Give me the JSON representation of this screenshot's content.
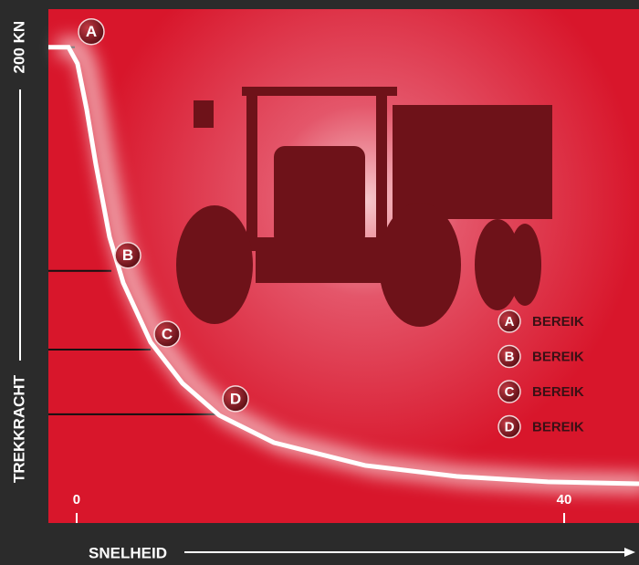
{
  "chart_data": {
    "type": "line",
    "y_label": "TREKKRACHT",
    "x_label": "SNELHEID",
    "xlim": [
      -2.32,
      46.14
    ],
    "ylim": [
      0,
      216
    ],
    "xticks": [
      0,
      40
    ],
    "yticks": [
      {
        "value": 200,
        "label": "200 KN"
      }
    ],
    "curve_color": "#ffffff",
    "x": [
      -2.32,
      -0.67,
      0.07,
      0.82,
      1.57,
      2.7,
      3.82,
      6.07,
      8.69,
      11.69,
      16.18,
      23.67,
      31.16,
      38.65,
      46.14
    ],
    "values": [
      200,
      200,
      193.1,
      173.9,
      150.9,
      120.2,
      101.0,
      76.0,
      58.7,
      45.3,
      33.8,
      24.2,
      19.6,
      17.3,
      16.5
    ],
    "points": [
      {
        "label": "A",
        "x": -0.15,
        "y": 200,
        "legend": "BEREIK"
      },
      {
        "label": "B",
        "x": 2.85,
        "y": 106.0,
        "legend": "BEREIK"
      },
      {
        "label": "C",
        "x": 6.07,
        "y": 72.9,
        "legend": "BEREIK"
      },
      {
        "label": "D",
        "x": 11.69,
        "y": 45.7,
        "legend": "BEREIK"
      }
    ]
  }
}
